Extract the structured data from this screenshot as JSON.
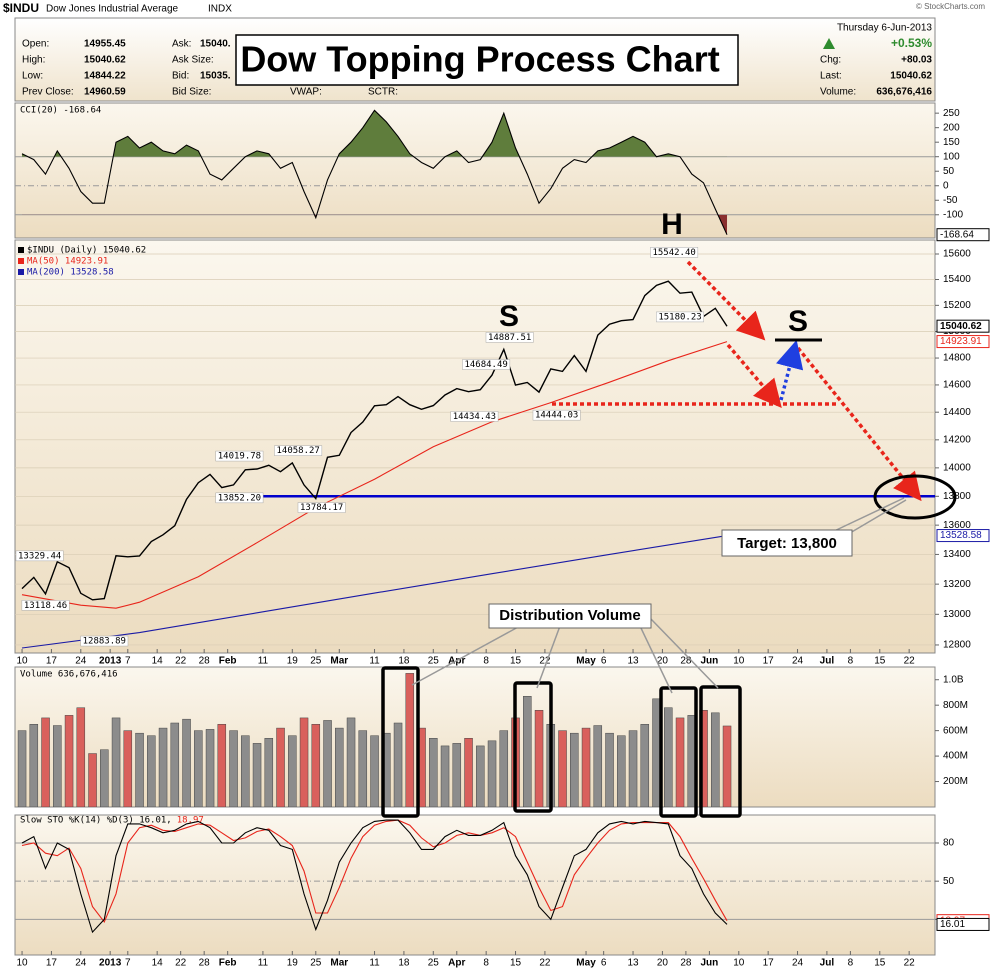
{
  "header": {
    "symbol": "$INDU",
    "name": "Dow Jones Industrial Average",
    "exchange": "INDX",
    "credit": "© StockCharts.com",
    "date": "Thursday  6-Jun-2013",
    "left_stats": [
      {
        "label": "Open:",
        "value": "14955.45"
      },
      {
        "label": "High:",
        "value": "15040.62"
      },
      {
        "label": "Low:",
        "value": "14844.22"
      },
      {
        "label": "Prev Close:",
        "value": "14960.59"
      }
    ],
    "mid_stats": [
      {
        "label": "Ask:",
        "value": "15040."
      },
      {
        "label": "Ask Size:"
      },
      {
        "label": "Bid:",
        "value": "15035."
      },
      {
        "label": "Bid Size:"
      }
    ],
    "extra_labels": [
      "VWAP:",
      "SCTR:"
    ],
    "change_pct": "+0.53%",
    "right_stats": [
      {
        "label": "Chg:",
        "value": "+80.03"
      },
      {
        "label": "Last:",
        "value": "15040.62"
      },
      {
        "label": "Volume:",
        "value": "636,676,416"
      }
    ]
  },
  "annotations": {
    "title": "Dow Topping Process Chart",
    "left_shoulder": "S",
    "head": "H",
    "right_shoulder": "S",
    "target": "Target: 13,800",
    "distribution": "Distribution Volume"
  },
  "chart_data": [
    {
      "type": "line",
      "label": "CCI(20) -168.64",
      "x": [
        0,
        2,
        4,
        6,
        8,
        10,
        12,
        14,
        16,
        18,
        20,
        22,
        24,
        26,
        28,
        30,
        32,
        34,
        36,
        38,
        40,
        42,
        44,
        46,
        48,
        50,
        52,
        54,
        56,
        58,
        60,
        62,
        64,
        66,
        68,
        70,
        72,
        74,
        76,
        78,
        80,
        82,
        84,
        86,
        88,
        90,
        92,
        94,
        96,
        98,
        100,
        102,
        104,
        106,
        108,
        110,
        112,
        114,
        116,
        118,
        120
      ],
      "series": [
        {
          "color": "#000000",
          "box_last": true,
          "fill_above": {
            "level": 100,
            "color": "#5f7d3c"
          },
          "fill_below": {
            "level": -100,
            "color": "#8a3030"
          },
          "values": [
            110,
            90,
            40,
            120,
            60,
            -20,
            -60,
            -60,
            150,
            170,
            130,
            150,
            120,
            110,
            140,
            120,
            40,
            20,
            60,
            100,
            120,
            110,
            60,
            80,
            -20,
            -110,
            20,
            110,
            150,
            200,
            260,
            220,
            170,
            110,
            80,
            60,
            100,
            120,
            80,
            90,
            150,
            250,
            130,
            40,
            -60,
            -10,
            60,
            90,
            80,
            120,
            130,
            150,
            170,
            150,
            100,
            110,
            100,
            40,
            10,
            -80,
            -168.64
          ]
        }
      ],
      "ylim": [
        -180,
        285
      ],
      "yticks": [
        250,
        200,
        150,
        100,
        50,
        0,
        -50,
        -100
      ],
      "reference_lines": [
        {
          "value": 100
        },
        {
          "value": 0,
          "dashed": true
        },
        {
          "value": -100
        }
      ]
    },
    {
      "type": "line",
      "log_scale": true,
      "xlim": [
        -1.2,
        155.4
      ],
      "x": [
        0,
        2,
        4,
        6,
        8,
        10,
        12,
        14,
        16,
        18,
        20,
        22,
        24,
        26,
        28,
        30,
        32,
        34,
        36,
        38,
        40,
        42,
        44,
        46,
        48,
        50,
        52,
        54,
        56,
        58,
        60,
        62,
        64,
        66,
        68,
        70,
        72,
        74,
        76,
        78,
        80,
        82,
        84,
        86,
        88,
        90,
        92,
        94,
        96,
        98,
        100,
        102,
        104,
        106,
        108,
        110,
        112,
        114,
        116,
        118,
        120
      ],
      "series": [
        {
          "name": "$INDU (Daily) 15040.62",
          "color": "#000000",
          "box_last": true,
          "values": [
            13170,
            13245,
            13135,
            13350,
            13311,
            13139,
            13096,
            13104,
            13391,
            13384,
            13390,
            13488,
            13534,
            13596,
            13779,
            13895,
            13954,
            13861,
            13880,
            13986,
            13992,
            14018,
            13973,
            14035,
            13880,
            13784,
            14075,
            14089,
            14253,
            14329,
            14447,
            14455,
            14514,
            14455,
            14421,
            14448,
            14526,
            14573,
            14550,
            14565,
            14673,
            14865,
            14599,
            14618,
            14547,
            14719,
            14700,
            14818,
            14700,
            14973,
            15056,
            15082,
            15091,
            15275,
            15354,
            15387,
            15294,
            15302,
            15115,
            15177,
            15040.62
          ]
        },
        {
          "name": "MA(50) 14923.91",
          "color": "#e8251b",
          "box_last": true,
          "x": [
            0,
            10,
            16,
            20,
            30,
            40,
            50,
            60,
            70,
            80,
            90,
            100,
            110,
            120
          ],
          "values": [
            13130,
            13060,
            13040,
            13080,
            13250,
            13480,
            13720,
            13920,
            14150,
            14330,
            14470,
            14620,
            14780,
            14923.91
          ]
        },
        {
          "name": "MA(200) 13528.58",
          "color": "#1a1aa6",
          "box_last": true,
          "x": [
            0,
            20,
            40,
            60,
            80,
            100,
            120
          ],
          "values": [
            12780,
            12880,
            13010,
            13140,
            13270,
            13400,
            13528.58
          ]
        }
      ],
      "ylim": [
        12748,
        15711
      ],
      "yticks": [
        12800,
        13000,
        13200,
        13400,
        13600,
        13800,
        14000,
        14200,
        14400,
        14600,
        14800,
        15000,
        15200,
        15400,
        15600
      ],
      "grid": true,
      "reference_lines": [
        {
          "value": 13800,
          "color": "#0000cc",
          "from_x": 34
        }
      ],
      "high_labels": [
        {
          "x": 3,
          "value": 13329.44,
          "label": "13329.44"
        },
        {
          "x": 37,
          "value": 14019.78,
          "label": "14019.78"
        },
        {
          "x": 47,
          "value": 14058.27,
          "label": "14058.27"
        },
        {
          "x": 79,
          "value": 14684.49,
          "label": "14684.49"
        },
        {
          "x": 83,
          "value": 14887.51,
          "label": "14887.51"
        },
        {
          "x": 111,
          "value": 15542.4,
          "label": "15542.40"
        }
      ],
      "low_labels": [
        {
          "x": 4,
          "value": 13118.46,
          "label": "13118.46"
        },
        {
          "x": 14,
          "value": 12883.89,
          "label": "12883.89"
        },
        {
          "x": 37,
          "value": 13852.2,
          "label": "13852.20"
        },
        {
          "x": 51,
          "value": 13784.17,
          "label": "13784.17"
        },
        {
          "x": 77,
          "value": 14434.43,
          "label": "14434.43"
        },
        {
          "x": 91,
          "value": 14444.03,
          "label": "14444.03"
        },
        {
          "x": 112,
          "value": 15180.23,
          "label": "15180.23"
        }
      ],
      "xticks": [
        {
          "value": 0,
          "label": "10"
        },
        {
          "value": 5,
          "label": "17"
        },
        {
          "value": 10,
          "label": "24"
        },
        {
          "value": 15,
          "label": "2013"
        },
        {
          "value": 18,
          "label": "7"
        },
        {
          "value": 23,
          "label": "14"
        },
        {
          "value": 27,
          "label": "22"
        },
        {
          "value": 31,
          "label": "28"
        },
        {
          "value": 35,
          "label": "Feb"
        },
        {
          "value": 41,
          "label": "11"
        },
        {
          "value": 46,
          "label": "19"
        },
        {
          "value": 50,
          "label": "25"
        },
        {
          "value": 54,
          "label": "Mar"
        },
        {
          "value": 60,
          "label": "11"
        },
        {
          "value": 65,
          "label": "18"
        },
        {
          "value": 70,
          "label": "25"
        },
        {
          "value": 74,
          "label": "Apr"
        },
        {
          "value": 79,
          "label": "8"
        },
        {
          "value": 84,
          "label": "15"
        },
        {
          "value": 89,
          "label": "22"
        },
        {
          "value": 96,
          "label": "May"
        },
        {
          "value": 99,
          "label": "6"
        },
        {
          "value": 104,
          "label": "13"
        },
        {
          "value": 109,
          "label": "20"
        },
        {
          "value": 113,
          "label": "28"
        },
        {
          "value": 117,
          "label": "Jun"
        },
        {
          "value": 122,
          "label": "10"
        },
        {
          "value": 127,
          "label": "17"
        },
        {
          "value": 132,
          "label": "24"
        },
        {
          "value": 137,
          "label": "Jul"
        },
        {
          "value": 141,
          "label": "8"
        },
        {
          "value": 146,
          "label": "15"
        },
        {
          "value": 151,
          "label": "22"
        }
      ]
    },
    {
      "type": "bar",
      "label": "Volume 636,676,416",
      "up_color": "#8c8c8c",
      "down_color": "#d9605c",
      "x": [
        0,
        2,
        4,
        6,
        8,
        10,
        12,
        14,
        16,
        18,
        20,
        22,
        24,
        26,
        28,
        30,
        32,
        34,
        36,
        38,
        40,
        42,
        44,
        46,
        48,
        50,
        52,
        54,
        56,
        58,
        60,
        62,
        64,
        66,
        68,
        70,
        72,
        74,
        76,
        78,
        80,
        82,
        84,
        86,
        88,
        90,
        92,
        94,
        96,
        98,
        100,
        102,
        104,
        106,
        108,
        110,
        112,
        114,
        116,
        118,
        120
      ],
      "values": [
        600000000,
        650000000,
        700000000,
        640000000,
        720000000,
        780000000,
        420000000,
        450000000,
        700000000,
        600000000,
        580000000,
        560000000,
        620000000,
        660000000,
        690000000,
        600000000,
        610000000,
        650000000,
        600000000,
        560000000,
        500000000,
        540000000,
        620000000,
        560000000,
        700000000,
        650000000,
        680000000,
        620000000,
        700000000,
        600000000,
        560000000,
        580000000,
        660000000,
        1050000000,
        620000000,
        540000000,
        480000000,
        500000000,
        540000000,
        480000000,
        520000000,
        600000000,
        700000000,
        870000000,
        760000000,
        650000000,
        600000000,
        580000000,
        620000000,
        640000000,
        580000000,
        560000000,
        600000000,
        650000000,
        850000000,
        780000000,
        700000000,
        720000000,
        760000000,
        740000000,
        636676416
      ],
      "ylim": [
        0,
        1100000000
      ],
      "yticks": [
        {
          "value": 200000000,
          "label": "200M"
        },
        {
          "value": 400000000,
          "label": "400M"
        },
        {
          "value": 600000000,
          "label": "600M"
        },
        {
          "value": 800000000,
          "label": "800M"
        },
        {
          "value": 1000000000,
          "label": "1.0B"
        }
      ]
    },
    {
      "type": "line",
      "label_parts": [
        {
          "text": "Slow STO %K(14) %D(3) 16.01,",
          "color": "#000000"
        },
        {
          "text": "18.97",
          "color": "#e8251b"
        }
      ],
      "x": [
        0,
        2,
        4,
        6,
        8,
        10,
        12,
        14,
        16,
        18,
        20,
        22,
        24,
        26,
        28,
        30,
        32,
        34,
        36,
        38,
        40,
        42,
        44,
        46,
        48,
        50,
        52,
        54,
        56,
        58,
        60,
        62,
        64,
        66,
        68,
        70,
        72,
        74,
        76,
        78,
        80,
        82,
        84,
        86,
        88,
        90,
        92,
        94,
        96,
        98,
        100,
        102,
        104,
        106,
        108,
        110,
        112,
        114,
        116,
        118,
        120
      ],
      "series": [
        {
          "color": "#e8251b",
          "box_last": true,
          "values": [
            78,
            80,
            72,
            70,
            76,
            60,
            30,
            18,
            40,
            80,
            92,
            94,
            90,
            89,
            92,
            95,
            94,
            88,
            82,
            84,
            89,
            91,
            85,
            78,
            58,
            25,
            25,
            45,
            68,
            85,
            94,
            97,
            98,
            94,
            84,
            77,
            80,
            86,
            88,
            86,
            88,
            92,
            85,
            65,
            45,
            27,
            30,
            55,
            68,
            80,
            90,
            95,
            96,
            96,
            96,
            96,
            85,
            68,
            52,
            35,
            18.97
          ]
        },
        {
          "color": "#000000",
          "box_last": true,
          "values": [
            80,
            85,
            60,
            80,
            75,
            40,
            10,
            20,
            70,
            95,
            95,
            92,
            88,
            90,
            95,
            97,
            92,
            80,
            80,
            88,
            92,
            90,
            78,
            75,
            40,
            12,
            35,
            65,
            80,
            92,
            97,
            98,
            98,
            88,
            75,
            75,
            85,
            90,
            86,
            86,
            90,
            96,
            70,
            55,
            30,
            20,
            45,
            70,
            75,
            88,
            95,
            97,
            95,
            97,
            96,
            95,
            70,
            60,
            40,
            25,
            16.01
          ]
        }
      ],
      "ylim": [
        -8,
        102
      ],
      "yticks": [
        80,
        50,
        20
      ],
      "reference_lines": [
        {
          "value": 80
        },
        {
          "value": 50,
          "dashed": true
        },
        {
          "value": 20
        }
      ]
    }
  ]
}
